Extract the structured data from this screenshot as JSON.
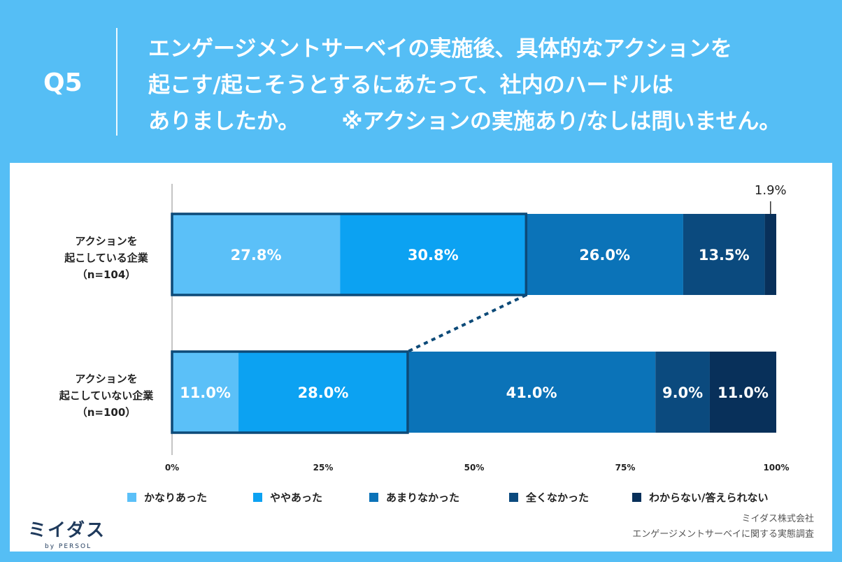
{
  "question": {
    "number": "Q5",
    "line1": "エンゲージメントサーベイの実施後、具体的なアクションを",
    "line2": "起こす/起こそうとするにあたって、社内のハードルは",
    "line3": "ありましたか。",
    "note": "※アクションの実施あり/なしは問いません。"
  },
  "chart_data": {
    "type": "bar",
    "orientation": "horizontal-stacked-100",
    "categories": [
      {
        "lines": [
          "アクションを",
          "起こしている企業",
          "（n=104）"
        ]
      },
      {
        "lines": [
          "アクションを",
          "起こしていない企業",
          "（n=100）"
        ]
      }
    ],
    "series": [
      {
        "name": "かなりあった",
        "color": "#5bc0f8",
        "values": [
          27.8,
          11.0
        ],
        "labels": [
          "27.8%",
          "11.0%"
        ]
      },
      {
        "name": "ややあった",
        "color": "#0ca2f2",
        "values": [
          30.8,
          28.0
        ],
        "labels": [
          "30.8%",
          "28.0%"
        ]
      },
      {
        "name": "あまりなかった",
        "color": "#0b73b8",
        "values": [
          26.0,
          41.0
        ],
        "labels": [
          "26.0%",
          "41.0%"
        ]
      },
      {
        "name": "全くなかった",
        "color": "#0b4a7e",
        "values": [
          13.5,
          9.0
        ],
        "labels": [
          "13.5%",
          "9.0%"
        ]
      },
      {
        "name": "わからない/答えられない",
        "color": "#08305a",
        "values": [
          1.9,
          11.0
        ],
        "labels": [
          "1.9%",
          "11.0%"
        ]
      }
    ],
    "xticks": [
      "0%",
      "25%",
      "50%",
      "75%",
      "100%"
    ],
    "xlim": [
      0,
      100
    ],
    "highlight_series_count": 2,
    "highlight_color": "#0d4a78"
  },
  "footer": {
    "logo": "ミイダス",
    "logo_sub": "by PERSOL",
    "company": "ミイダス株式会社",
    "survey": "エンゲージメントサーベイに関する実態調査"
  }
}
